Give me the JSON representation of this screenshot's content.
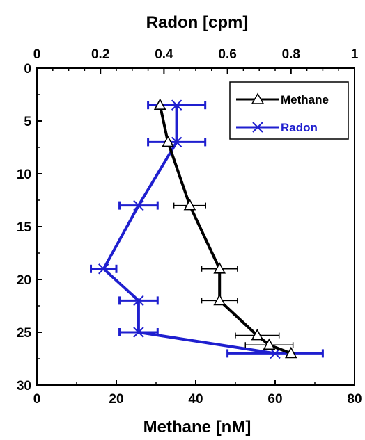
{
  "chart_data": {
    "type": "line",
    "top_axis": {
      "label": "Radon [cpm]",
      "range": [
        0,
        1
      ],
      "ticks": [
        "0",
        "0.2",
        "0.4",
        "0.6",
        "0.8",
        "1"
      ]
    },
    "bottom_axis": {
      "label": "Methane [nM]",
      "range": [
        0,
        80
      ],
      "ticks": [
        "0",
        "20",
        "40",
        "60",
        "80"
      ]
    },
    "left_axis": {
      "range": [
        0,
        30
      ],
      "inverted": true,
      "ticks": [
        "0",
        "5",
        "10",
        "15",
        "20",
        "25",
        "30"
      ]
    },
    "legend": {
      "placement": "top-right",
      "entries": [
        {
          "label": "Methane",
          "color": "#000000",
          "marker": "triangle"
        },
        {
          "label": "Radon",
          "color": "#1f1fcf",
          "marker": "x"
        }
      ]
    },
    "series": [
      {
        "name": "Methane",
        "axis": "bottom",
        "color": "#000000",
        "marker": "triangle",
        "points": [
          {
            "x": 31,
            "y": 3.5,
            "err": 0
          },
          {
            "x": 33,
            "y": 7,
            "err": 0
          },
          {
            "x": 38.5,
            "y": 13,
            "err": 4
          },
          {
            "x": 46,
            "y": 19,
            "err": 4.5
          },
          {
            "x": 46,
            "y": 22,
            "err": 4.5
          },
          {
            "x": 55.5,
            "y": 25.3,
            "err": 5.5
          },
          {
            "x": 58.5,
            "y": 26.2,
            "err": 6
          },
          {
            "x": 64,
            "y": 27,
            "err": 0
          }
        ]
      },
      {
        "name": "Radon",
        "axis": "top",
        "color": "#1f1fcf",
        "marker": "x",
        "points": [
          {
            "x": 0.44,
            "y": 3.5,
            "err": 0.09
          },
          {
            "x": 0.44,
            "y": 7,
            "err": 0.09
          },
          {
            "x": 0.32,
            "y": 13,
            "err": 0.06
          },
          {
            "x": 0.21,
            "y": 19,
            "err": 0.04
          },
          {
            "x": 0.32,
            "y": 22,
            "err": 0.06
          },
          {
            "x": 0.32,
            "y": 25,
            "err": 0.06
          },
          {
            "x": 0.75,
            "y": 27,
            "err": 0.15
          }
        ]
      }
    ]
  }
}
